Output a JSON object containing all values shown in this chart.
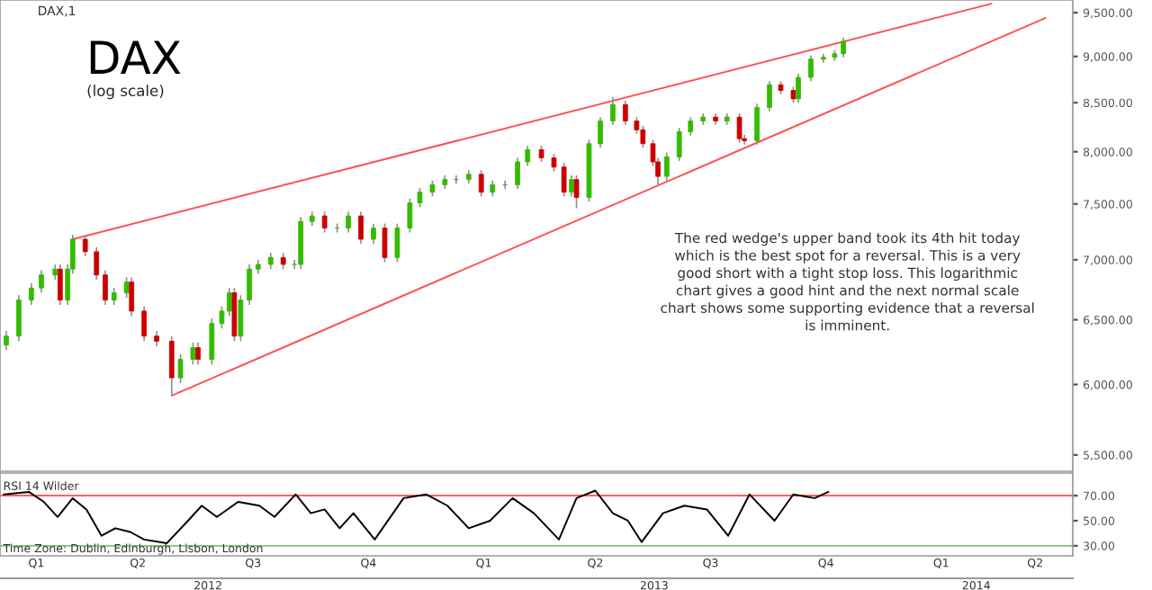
{
  "chart_data": [
    {
      "type": "candlestick",
      "title": "DAX",
      "subtitle": "(log scale)",
      "log": true,
      "tick_labels": "y",
      "annotations": [
        "DAX,1",
        "The red wedge's upper band took its 4th hit today\nwhich is the best spot for a reversal. This is a very\ngood short with a tight stop loss. This logarithmic\nchart gives a good hint and the next normal scale\nchart shows some supporting evidence that a reversal\nis imminent."
      ],
      "xlim": [
        "2012-01-26",
        "2014-05-31"
      ],
      "ylim": [
        5390,
        9650
      ],
      "yticks": [
        {
          "value": 5500,
          "label": "5,500.00"
        },
        {
          "value": 6000,
          "label": "6,000.00"
        },
        {
          "value": 6500,
          "label": "6,500.00"
        },
        {
          "value": 7000,
          "label": "7,000.00"
        },
        {
          "value": 7500,
          "label": "7,500.00"
        },
        {
          "value": 8000,
          "label": "8,000.00"
        },
        {
          "value": 8500,
          "label": "8,500.00"
        },
        {
          "value": 9000,
          "label": "9,000.00"
        },
        {
          "value": 9500,
          "label": "9,500.00"
        }
      ],
      "x": [
        "2012-01-31",
        "2012-02-10",
        "2012-02-20",
        "2012-02-28",
        "2012-03-10",
        "2012-03-14",
        "2012-03-20",
        "2012-03-24",
        "2012-04-03",
        "2012-04-12",
        "2012-04-19",
        "2012-04-26",
        "2012-05-06",
        "2012-05-10",
        "2012-05-20",
        "2012-05-30",
        "2012-06-11",
        "2012-06-18",
        "2012-06-28",
        "2012-07-02",
        "2012-07-13",
        "2012-07-21",
        "2012-07-27",
        "2012-07-31",
        "2012-08-05",
        "2012-08-12",
        "2012-08-19",
        "2012-08-29",
        "2012-09-08",
        "2012-09-17",
        "2012-09-22",
        "2012-10-01",
        "2012-10-11",
        "2012-10-21",
        "2012-10-30",
        "2012-11-09",
        "2012-11-19",
        "2012-11-28",
        "2012-12-08",
        "2012-12-18",
        "2012-12-26",
        "2013-01-05",
        "2013-01-15",
        "2013-01-24",
        "2013-02-03",
        "2013-02-13",
        "2013-02-22",
        "2013-03-04",
        "2013-03-14",
        "2013-03-22",
        "2013-04-02",
        "2013-04-12",
        "2013-04-20",
        "2013-04-26",
        "2013-04-30",
        "2013-05-10",
        "2013-05-19",
        "2013-05-29",
        "2013-06-08",
        "2013-06-17",
        "2013-06-22",
        "2013-06-30",
        "2013-07-04",
        "2013-07-11",
        "2013-07-21",
        "2013-07-30",
        "2013-08-09",
        "2013-08-19",
        "2013-08-28",
        "2013-09-07",
        "2013-09-11",
        "2013-09-21",
        "2013-10-01",
        "2013-10-10",
        "2013-10-20",
        "2013-10-24",
        "2013-11-03",
        "2013-11-13",
        "2013-11-22",
        "2013-11-29"
      ],
      "ohlc": [
        [
          6300,
          6410,
          6260,
          6370
        ],
        [
          6370,
          6700,
          6330,
          6660
        ],
        [
          6660,
          6800,
          6620,
          6760
        ],
        [
          6760,
          6910,
          6720,
          6870
        ],
        [
          6870,
          6960,
          6830,
          6920
        ],
        [
          6920,
          6960,
          6620,
          6660
        ],
        [
          6660,
          6960,
          6620,
          6920
        ],
        [
          6920,
          7220,
          6880,
          7180
        ],
        [
          7180,
          7220,
          7030,
          7070
        ],
        [
          7070,
          7110,
          6830,
          6870
        ],
        [
          6870,
          6910,
          6620,
          6660
        ],
        [
          6660,
          6760,
          6620,
          6720
        ],
        [
          6720,
          6850,
          6680,
          6810
        ],
        [
          6810,
          6850,
          6530,
          6570
        ],
        [
          6570,
          6610,
          6330,
          6370
        ],
        [
          6370,
          6410,
          6290,
          6330
        ],
        [
          6330,
          6370,
          5920,
          6050
        ],
        [
          6050,
          6230,
          6010,
          6190
        ],
        [
          6190,
          6320,
          6150,
          6280
        ],
        [
          6280,
          6320,
          6150,
          6190
        ],
        [
          6190,
          6510,
          6150,
          6470
        ],
        [
          6470,
          6610,
          6430,
          6570
        ],
        [
          6570,
          6760,
          6530,
          6720
        ],
        [
          6720,
          6760,
          6330,
          6370
        ],
        [
          6370,
          6700,
          6330,
          6660
        ],
        [
          6660,
          6960,
          6620,
          6920
        ],
        [
          6920,
          7000,
          6880,
          6960
        ],
        [
          6960,
          7060,
          6920,
          7020
        ],
        [
          7020,
          7060,
          6920,
          6960
        ],
        [
          6960,
          7000,
          6920,
          6960
        ],
        [
          6960,
          7380,
          6920,
          7340
        ],
        [
          7340,
          7430,
          7300,
          7390
        ],
        [
          7390,
          7430,
          7240,
          7280
        ],
        [
          7280,
          7320,
          7240,
          7280
        ],
        [
          7280,
          7430,
          7240,
          7390
        ],
        [
          7390,
          7430,
          7140,
          7180
        ],
        [
          7180,
          7320,
          7140,
          7280
        ],
        [
          7280,
          7320,
          6980,
          7020
        ],
        [
          7020,
          7320,
          6980,
          7280
        ],
        [
          7280,
          7550,
          7240,
          7510
        ],
        [
          7510,
          7650,
          7470,
          7610
        ],
        [
          7610,
          7720,
          7570,
          7680
        ],
        [
          7680,
          7770,
          7640,
          7730
        ],
        [
          7730,
          7770,
          7690,
          7730
        ],
        [
          7730,
          7820,
          7690,
          7780
        ],
        [
          7780,
          7820,
          7570,
          7610
        ],
        [
          7610,
          7720,
          7570,
          7680
        ],
        [
          7680,
          7720,
          7640,
          7680
        ],
        [
          7680,
          7940,
          7640,
          7900
        ],
        [
          7900,
          8060,
          7860,
          8020
        ],
        [
          8020,
          8060,
          7900,
          7940
        ],
        [
          7940,
          7980,
          7810,
          7850
        ],
        [
          7850,
          7890,
          7570,
          7610
        ],
        [
          7610,
          7770,
          7570,
          7730
        ],
        [
          7730,
          7770,
          7460,
          7560
        ],
        [
          7560,
          8120,
          7520,
          8080
        ],
        [
          8080,
          8350,
          8040,
          8310
        ],
        [
          8310,
          8560,
          8270,
          8480
        ],
        [
          8480,
          8520,
          8270,
          8310
        ],
        [
          8310,
          8350,
          8180,
          8220
        ],
        [
          8220,
          8260,
          8040,
          8080
        ],
        [
          8080,
          8120,
          7860,
          7900
        ],
        [
          7900,
          7940,
          7680,
          7760
        ],
        [
          7760,
          7990,
          7720,
          7950
        ],
        [
          7950,
          8240,
          7910,
          8200
        ],
        [
          8200,
          8350,
          8160,
          8310
        ],
        [
          8310,
          8390,
          8270,
          8350
        ],
        [
          8350,
          8390,
          8270,
          8310
        ],
        [
          8310,
          8390,
          8270,
          8350
        ],
        [
          8350,
          8390,
          8090,
          8130
        ],
        [
          8130,
          8170,
          8070,
          8110
        ],
        [
          8110,
          8490,
          8070,
          8450
        ],
        [
          8450,
          8730,
          8410,
          8690
        ],
        [
          8690,
          8730,
          8590,
          8630
        ],
        [
          8630,
          8670,
          8500,
          8540
        ],
        [
          8540,
          8810,
          8500,
          8770
        ],
        [
          8770,
          9010,
          8730,
          8970
        ],
        [
          8970,
          9030,
          8930,
          8990
        ],
        [
          8990,
          9070,
          8950,
          9030
        ],
        [
          9030,
          9210,
          8990,
          9170
        ]
      ],
      "series": [
        {
          "type": "line",
          "color": "#ff5050",
          "x": [
            "2012-03-24",
            "2014-03-27"
          ],
          "values": [
            7180,
            9606
          ]
        },
        {
          "type": "line",
          "color": "#ff5050",
          "x": [
            "2012-06-11",
            "2014-05-09"
          ],
          "values": [
            5918,
            9437
          ]
        }
      ]
    },
    {
      "type": "line",
      "title": "RSI 14 Wilder",
      "annotations": [
        "Time Zone: Dublin, Edinburgh, Lisbon, London"
      ],
      "xlim": [
        "2012-01-26",
        "2014-05-31"
      ],
      "ylim": [
        22,
        88
      ],
      "yticks": [
        {
          "value": 30,
          "label": "30.00"
        },
        {
          "value": 50,
          "label": "50.00"
        },
        {
          "value": 70,
          "label": "70.00"
        }
      ],
      "xticks": [
        {
          "value": "2012-02-24",
          "label": "Q1"
        },
        {
          "value": "2012-05-15",
          "label": "Q2"
        },
        {
          "value": "2012-08-15",
          "label": "Q3"
        },
        {
          "value": "2012-11-15",
          "label": "Q4"
        },
        {
          "value": "2013-02-15",
          "label": "Q1"
        },
        {
          "value": "2013-05-15",
          "label": "Q2"
        },
        {
          "value": "2013-08-15",
          "label": "Q3"
        },
        {
          "value": "2013-11-15",
          "label": "Q4"
        },
        {
          "value": "2014-02-15",
          "label": "Q1"
        },
        {
          "value": "2014-05-01",
          "label": "Q2"
        }
      ],
      "x2lim": [
        "2012-01-26",
        "2014-05-31"
      ],
      "x2ticks": [
        {
          "value": "2012-07-10",
          "label": "2012"
        },
        {
          "value": "2013-07-01",
          "label": "2013"
        },
        {
          "value": "2014-03-15",
          "label": "2014"
        }
      ],
      "ref_lines": [
        {
          "axis": "y",
          "value": 70,
          "color": "#ff6060"
        },
        {
          "axis": "y",
          "value": 30,
          "color": "#80c080"
        }
      ],
      "series": [
        {
          "color": "#000000",
          "x": [
            "2012-01-29",
            "2012-02-18",
            "2012-03-01",
            "2012-03-12",
            "2012-03-24",
            "2012-04-04",
            "2012-04-16",
            "2012-04-27",
            "2012-05-09",
            "2012-05-20",
            "2012-06-07",
            "2012-06-24",
            "2012-07-05",
            "2012-07-17",
            "2012-08-03",
            "2012-08-20",
            "2012-09-01",
            "2012-09-18",
            "2012-09-30",
            "2012-10-11",
            "2012-10-23",
            "2012-11-03",
            "2012-11-20",
            "2012-12-13",
            "2012-12-31",
            "2013-01-17",
            "2013-02-03",
            "2013-02-20",
            "2013-03-10",
            "2013-03-27",
            "2013-04-16",
            "2013-04-30",
            "2013-05-15",
            "2013-05-29",
            "2013-06-10",
            "2013-06-21",
            "2013-07-08",
            "2013-07-25",
            "2013-08-12",
            "2013-08-29",
            "2013-09-15",
            "2013-10-05",
            "2013-10-20",
            "2013-11-06",
            "2013-11-17"
          ],
          "values": [
            71,
            73,
            65,
            53,
            68,
            59,
            38,
            44,
            41,
            35,
            32,
            50,
            62,
            53,
            65,
            62,
            53,
            71,
            56,
            59,
            44,
            56,
            35,
            68,
            71,
            62,
            44,
            50,
            68,
            56,
            35,
            68,
            74,
            56,
            50,
            33,
            56,
            62,
            59,
            38,
            71,
            50,
            71,
            68,
            73
          ]
        }
      ]
    }
  ]
}
